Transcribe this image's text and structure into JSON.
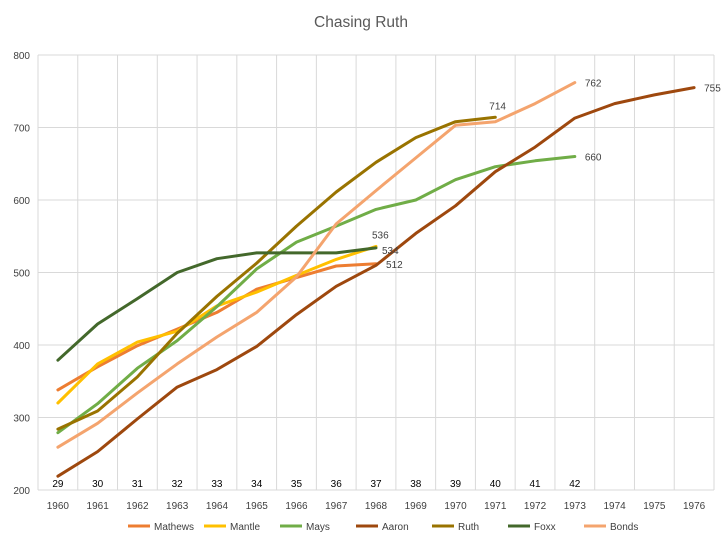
{
  "chart_data": {
    "type": "line",
    "title": "Chasing Ruth",
    "xlabel": "",
    "ylabel": "",
    "x": [
      "1960",
      "1961",
      "1962",
      "1963",
      "1964",
      "1965",
      "1966",
      "1967",
      "1968",
      "1969",
      "1970",
      "1971",
      "1972",
      "1973",
      "1974",
      "1975",
      "1976"
    ],
    "ylim": [
      200,
      800
    ],
    "yticks": [
      "200",
      "300",
      "400",
      "500",
      "600",
      "700",
      "800"
    ],
    "grid": true,
    "legend": "bottom",
    "age_labels": [
      "29",
      "30",
      "31",
      "32",
      "33",
      "34",
      "35",
      "36",
      "37",
      "38",
      "39",
      "40",
      "41",
      "42"
    ],
    "series": [
      {
        "name": "Mathews",
        "color": "#ED7D31",
        "values": [
          338,
          370,
          399,
          422,
          445,
          477,
          493,
          509,
          512,
          null,
          null,
          null,
          null,
          null,
          null,
          null,
          null
        ],
        "end_label": "512"
      },
      {
        "name": "Mantle",
        "color": "#FFC000",
        "values": [
          320,
          374,
          404,
          419,
          454,
          473,
          496,
          518,
          536,
          null,
          null,
          null,
          null,
          null,
          null,
          null,
          null
        ],
        "end_label": "536"
      },
      {
        "name": "Mays",
        "color": "#70AD47",
        "values": [
          279,
          319,
          368,
          406,
          453,
          505,
          542,
          564,
          587,
          600,
          628,
          646,
          654,
          660,
          null,
          null,
          null
        ],
        "end_label": "660"
      },
      {
        "name": "Aaron",
        "color": "#9E480E",
        "values": [
          219,
          253,
          298,
          342,
          366,
          398,
          442,
          481,
          510,
          554,
          592,
          639,
          673,
          713,
          733,
          745,
          755
        ],
        "end_label": "755"
      },
      {
        "name": "Ruth",
        "color": "#997300",
        "values": [
          284,
          309,
          356,
          416,
          467,
          513,
          564,
          611,
          652,
          686,
          708,
          714,
          null,
          null,
          null,
          null,
          null
        ],
        "end_label": "714"
      },
      {
        "name": "Foxx",
        "color": "#43682B",
        "values": [
          379,
          429,
          464,
          500,
          519,
          527,
          527,
          527,
          534,
          null,
          null,
          null,
          null,
          null,
          null,
          null,
          null
        ],
        "end_label": "534"
      },
      {
        "name": "Bonds",
        "color": "#F4A46E",
        "values": [
          259,
          292,
          334,
          374,
          411,
          445,
          494,
          567,
          613,
          658,
          703,
          708,
          733,
          762,
          null,
          null,
          null
        ],
        "end_label": "762"
      }
    ]
  }
}
